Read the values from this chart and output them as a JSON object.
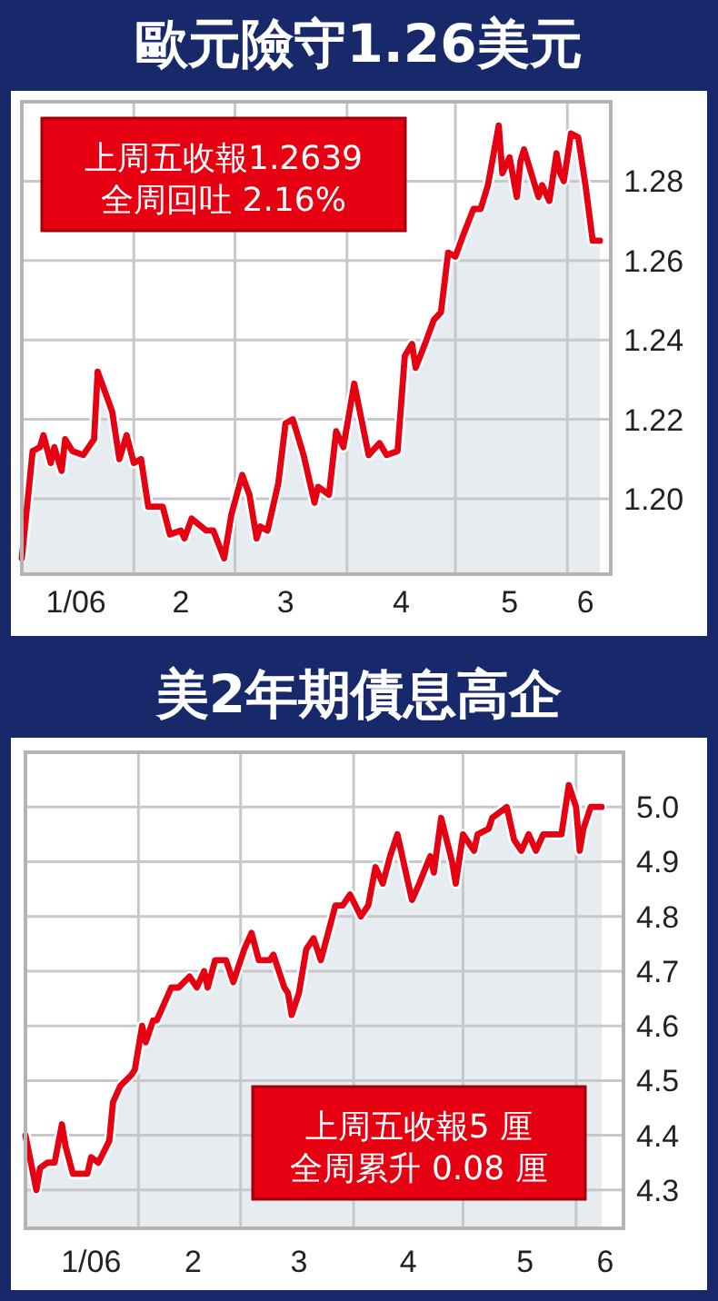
{
  "chart_data": [
    {
      "type": "area",
      "title": "歐元險守1.26美元",
      "annotations": [
        "上周五收報1.2639",
        "全周回吐 2.16%"
      ],
      "x": [
        "2006-01-01",
        "2006-01-04",
        "2006-01-06",
        "2006-01-07",
        "2006-01-09",
        "2006-01-10",
        "2006-01-12",
        "2006-01-13",
        "2006-01-15",
        "2006-01-18",
        "2006-01-21",
        "2006-01-22",
        "2006-01-26",
        "2006-01-28",
        "2006-01-30",
        "2006-02-01",
        "2006-02-03",
        "2006-02-05",
        "2006-02-08",
        "2006-02-09",
        "2006-02-11",
        "2006-02-14",
        "2006-02-15",
        "2006-02-17",
        "2006-02-21",
        "2006-02-23",
        "2006-02-26",
        "2006-02-28",
        "2006-03-03",
        "2006-03-05",
        "2006-03-07",
        "2006-03-08",
        "2006-03-10",
        "2006-03-13",
        "2006-03-15",
        "2006-03-17",
        "2006-03-20",
        "2006-03-23",
        "2006-03-24",
        "2006-03-27",
        "2006-03-29",
        "2006-03-31",
        "2006-04-03",
        "2006-04-07",
        "2006-04-10",
        "2006-04-12",
        "2006-04-15",
        "2006-04-17",
        "2006-04-19",
        "2006-04-20",
        "2006-04-23",
        "2006-04-25",
        "2006-04-27",
        "2006-04-29",
        "2006-05-01",
        "2006-05-03",
        "2006-05-06",
        "2006-05-08",
        "2006-05-10",
        "2006-05-13",
        "2006-05-14",
        "2006-05-16",
        "2006-05-18",
        "2006-05-19",
        "2006-05-20",
        "2006-05-22",
        "2006-05-24",
        "2006-05-25",
        "2006-05-27",
        "2006-05-29",
        "2006-05-30",
        "2006-05-31",
        "2006-06-02",
        "2006-06-04",
        "2006-06-06",
        "2006-06-08",
        "2006-06-10"
      ],
      "series": [
        {
          "color": "#e60012",
          "values": [
            1.185,
            1.212,
            1.213,
            1.216,
            1.209,
            1.213,
            1.207,
            1.215,
            1.212,
            1.211,
            1.215,
            1.232,
            1.222,
            1.21,
            1.216,
            1.209,
            1.21,
            1.198,
            1.198,
            1.198,
            1.191,
            1.192,
            1.19,
            1.195,
            1.192,
            1.192,
            1.185,
            1.196,
            1.206,
            1.201,
            1.19,
            1.193,
            1.192,
            1.204,
            1.219,
            1.22,
            1.211,
            1.199,
            1.203,
            1.201,
            1.217,
            1.213,
            1.229,
            1.211,
            1.214,
            1.211,
            1.212,
            1.236,
            1.239,
            1.233,
            1.24,
            1.245,
            1.247,
            1.262,
            1.261,
            1.266,
            1.273,
            1.273,
            1.279,
            1.294,
            1.282,
            1.286,
            1.276,
            1.285,
            1.288,
            1.282,
            1.276,
            1.279,
            1.275,
            1.287,
            1.282,
            1.28,
            1.292,
            1.291,
            1.279,
            1.265,
            1.265
          ]
        }
      ],
      "xlim": [
        "2006-01-01",
        "2006-06-13"
      ],
      "xticks": [
        {
          "value": "2006-02-01",
          "label": null
        },
        {
          "value": "2006-03-01",
          "label": null
        },
        {
          "value": "2006-04-01",
          "label": null
        },
        {
          "value": "2006-05-01",
          "label": null
        },
        {
          "value": "2006-06-01",
          "label": null
        },
        {
          "value": "2006-01-16",
          "label": "1/06"
        },
        {
          "value": "2006-02-14",
          "label": "2"
        },
        {
          "value": "2006-03-15",
          "label": "3"
        },
        {
          "value": "2006-04-16",
          "label": "4"
        },
        {
          "value": "2006-05-16",
          "label": "5"
        },
        {
          "value": "2006-06-06",
          "label": "6"
        }
      ],
      "ylim": [
        1.181,
        1.3
      ],
      "yticks": [
        {
          "value": 1.2,
          "label": "1.20"
        },
        1.22,
        1.24,
        1.26,
        1.28
      ],
      "grid": true
    },
    {
      "type": "area",
      "title": "美2年期債息高企",
      "annotations": [
        "上周五收報5 厘",
        "全周累升 0.08 厘"
      ],
      "x": [
        "2006-01-01",
        "2006-01-04",
        "2006-01-05",
        "2006-01-07",
        "2006-01-09",
        "2006-01-11",
        "2006-01-12",
        "2006-01-14",
        "2006-01-16",
        "2006-01-18",
        "2006-01-19",
        "2006-01-21",
        "2006-01-24",
        "2006-01-25",
        "2006-01-27",
        "2006-01-30",
        "2006-01-31",
        "2006-02-02",
        "2006-02-03",
        "2006-02-05",
        "2006-02-06",
        "2006-02-08",
        "2006-02-10",
        "2006-02-12",
        "2006-02-15",
        "2006-02-17",
        "2006-02-19",
        "2006-02-20",
        "2006-02-22",
        "2006-02-25",
        "2006-02-27",
        "2006-03-02",
        "2006-03-04",
        "2006-03-06",
        "2006-03-09",
        "2006-03-10",
        "2006-03-13",
        "2006-03-14",
        "2006-03-15",
        "2006-03-17",
        "2006-03-19",
        "2006-03-21",
        "2006-03-23",
        "2006-03-25",
        "2006-03-27",
        "2006-03-29",
        "2006-03-31",
        "2006-04-03",
        "2006-04-05",
        "2006-04-07",
        "2006-04-09",
        "2006-04-11",
        "2006-04-13",
        "2006-04-15",
        "2006-04-17",
        "2006-04-19",
        "2006-04-22",
        "2006-04-23",
        "2006-04-25",
        "2006-04-28",
        "2006-04-29",
        "2006-05-01",
        "2006-05-04",
        "2006-05-05",
        "2006-05-08",
        "2006-05-09",
        "2006-05-13",
        "2006-05-15",
        "2006-05-17",
        "2006-05-19",
        "2006-05-21",
        "2006-05-23",
        "2006-05-26",
        "2006-05-28",
        "2006-05-30",
        "2006-06-01",
        "2006-06-02",
        "2006-06-03",
        "2006-06-05",
        "2006-06-07",
        "2006-06-08"
      ],
      "series": [
        {
          "color": "#e60012",
          "values": [
            4.4,
            4.3,
            4.34,
            4.35,
            4.35,
            4.42,
            4.38,
            4.33,
            4.33,
            4.33,
            4.36,
            4.35,
            4.39,
            4.46,
            4.49,
            4.51,
            4.52,
            4.6,
            4.57,
            4.61,
            4.61,
            4.64,
            4.67,
            4.67,
            4.69,
            4.67,
            4.7,
            4.67,
            4.72,
            4.72,
            4.68,
            4.74,
            4.77,
            4.72,
            4.72,
            4.73,
            4.67,
            4.66,
            4.62,
            4.66,
            4.74,
            4.76,
            4.72,
            4.77,
            4.82,
            4.82,
            4.84,
            4.8,
            4.82,
            4.89,
            4.86,
            4.91,
            4.95,
            4.89,
            4.83,
            4.86,
            4.91,
            4.88,
            4.98,
            4.9,
            4.86,
            4.95,
            4.92,
            4.95,
            4.96,
            4.98,
            5.0,
            4.94,
            4.92,
            4.95,
            4.92,
            4.95,
            4.95,
            4.95,
            5.04,
            5.0,
            4.92,
            4.96,
            5.0,
            5.0,
            5.0
          ]
        }
      ],
      "xlim": [
        "2006-01-01",
        "2006-06-14"
      ],
      "xticks": [
        {
          "value": "2006-02-01",
          "label": null
        },
        {
          "value": "2006-03-01",
          "label": null
        },
        {
          "value": "2006-04-01",
          "label": null
        },
        {
          "value": "2006-05-01",
          "label": null
        },
        {
          "value": "2006-06-01",
          "label": null
        },
        {
          "value": "2006-01-19",
          "label": "1/06"
        },
        {
          "value": "2006-02-16",
          "label": "2"
        },
        {
          "value": "2006-03-17",
          "label": "3"
        },
        {
          "value": "2006-04-16",
          "label": "4"
        },
        {
          "value": "2006-05-18",
          "label": "5"
        },
        {
          "value": "2006-06-09",
          "label": "6"
        }
      ],
      "ylim": [
        4.23,
        5.1
      ],
      "yticks": [
        4.3,
        4.4,
        4.5,
        4.6,
        4.7,
        4.8,
        4.9,
        {
          "value": 5,
          "label": "5.0"
        }
      ],
      "grid": true
    }
  ]
}
